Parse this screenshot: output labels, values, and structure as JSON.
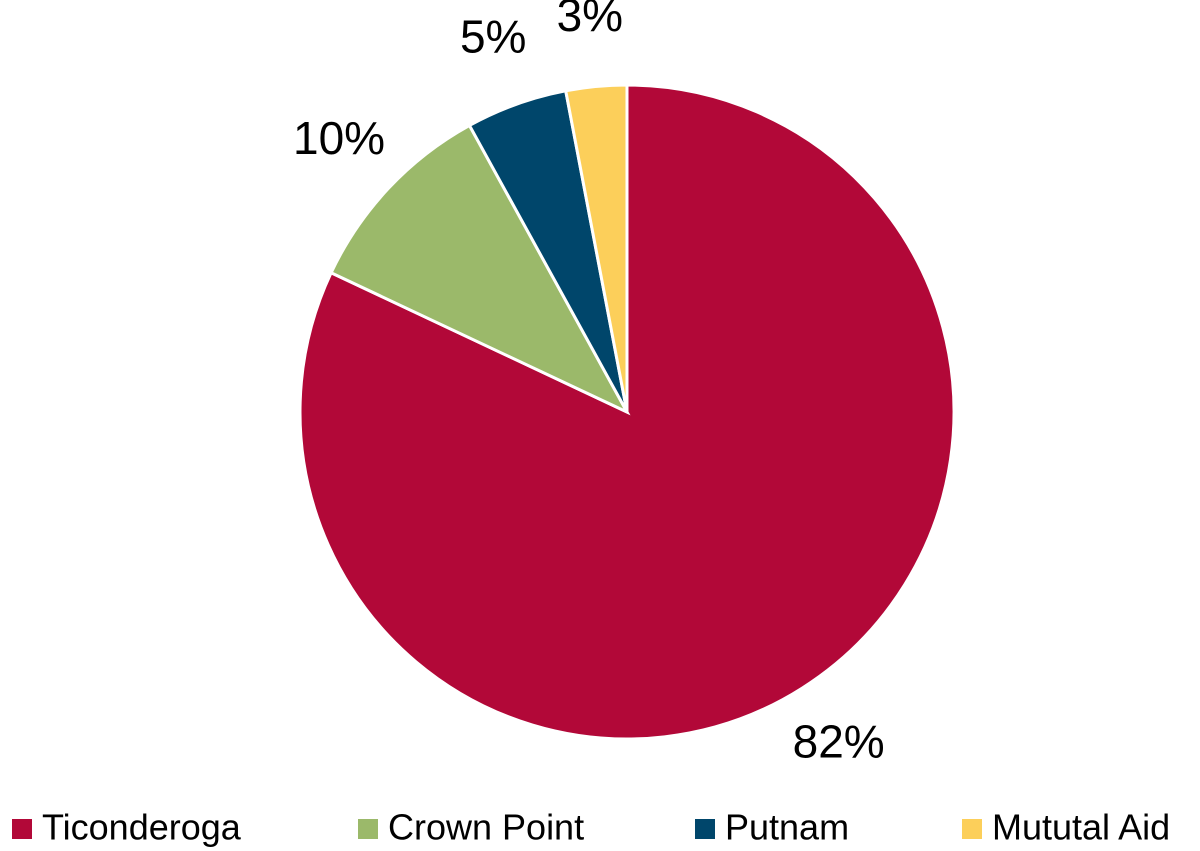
{
  "chart_data": {
    "type": "pie",
    "categories": [
      "Ticonderoga",
      "Crown Point",
      "Putnam",
      "Mututal Aid"
    ],
    "values": [
      82,
      10,
      5,
      3
    ],
    "value_labels": [
      "82%",
      "10%",
      "5%",
      "3%"
    ],
    "colors": [
      "#b20838",
      "#9bb96a",
      "#00466b",
      "#fccf5a"
    ],
    "legend": "bottom"
  }
}
